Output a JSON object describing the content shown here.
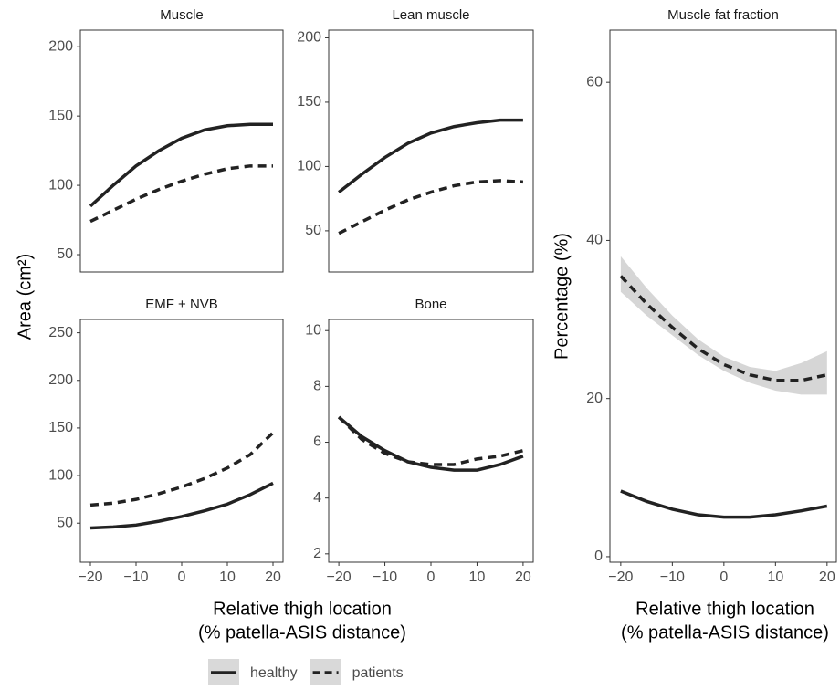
{
  "shared": {
    "ylabel": "Area (cm²)",
    "xlabel": [
      "Relative thigh location",
      "(% patella-ASIS distance)"
    ]
  },
  "chart_data": [
    {
      "type": "line",
      "title": "Muscle",
      "x": [
        -20,
        -15,
        -10,
        -5,
        0,
        5,
        10,
        15,
        20
      ],
      "xlim": [
        -22.2,
        22.2
      ],
      "ylim": [
        37.5,
        212
      ],
      "yticks": [
        50,
        100,
        150,
        200
      ],
      "series": [
        {
          "name": "healthy",
          "color": "#222222",
          "dash": false,
          "values": [
            85,
            100,
            114,
            125,
            134,
            140,
            143,
            144,
            144
          ]
        },
        {
          "name": "patients",
          "color": "#222222",
          "dash": true,
          "values": [
            74,
            82,
            90,
            97,
            103,
            108,
            112,
            114,
            114
          ]
        }
      ]
    },
    {
      "type": "line",
      "title": "Lean muscle",
      "x": [
        -20,
        -15,
        -10,
        -5,
        0,
        5,
        10,
        15,
        20
      ],
      "xlim": [
        -22.2,
        22.2
      ],
      "ylim": [
        18,
        206
      ],
      "yticks": [
        50,
        100,
        150,
        200
      ],
      "series": [
        {
          "name": "healthy",
          "color": "#222222",
          "dash": false,
          "values": [
            80,
            94,
            107,
            118,
            126,
            131,
            134,
            136,
            136
          ]
        },
        {
          "name": "patients",
          "color": "#222222",
          "dash": true,
          "values": [
            48,
            57,
            66,
            74,
            80,
            85,
            88,
            89,
            88
          ]
        }
      ]
    },
    {
      "type": "line",
      "title": "EMF + NVB",
      "x": [
        -20,
        -15,
        -10,
        -5,
        0,
        5,
        10,
        15,
        20
      ],
      "xlim": [
        -22.2,
        22.2
      ],
      "ylim": [
        9,
        264
      ],
      "yticks": [
        50,
        100,
        150,
        200,
        250
      ],
      "xticks": [
        {
          "value": -20,
          "label": "−20"
        },
        {
          "value": -10,
          "label": "−10"
        },
        0,
        10,
        20
      ],
      "series": [
        {
          "name": "healthy",
          "color": "#222222",
          "dash": false,
          "values": [
            45,
            46,
            48,
            52,
            57,
            63,
            70,
            80,
            92
          ]
        },
        {
          "name": "patients",
          "color": "#222222",
          "dash": true,
          "values": [
            69,
            71,
            75,
            81,
            88,
            97,
            108,
            122,
            145
          ]
        }
      ]
    },
    {
      "type": "line",
      "title": "Bone",
      "x": [
        -20,
        -15,
        -10,
        -5,
        0,
        5,
        10,
        15,
        20
      ],
      "xlim": [
        -22.2,
        22.2
      ],
      "ylim": [
        1.7,
        10.4
      ],
      "yticks": [
        2,
        4,
        6,
        8,
        10
      ],
      "xticks": [
        {
          "value": -20,
          "label": "−20"
        },
        {
          "value": -10,
          "label": "−10"
        },
        0,
        10,
        20
      ],
      "series": [
        {
          "name": "healthy",
          "color": "#222222",
          "dash": false,
          "values": [
            6.9,
            6.2,
            5.7,
            5.3,
            5.1,
            5.0,
            5.0,
            5.2,
            5.5
          ]
        },
        {
          "name": "patients",
          "color": "#222222",
          "dash": true,
          "values": [
            6.9,
            6.1,
            5.6,
            5.3,
            5.2,
            5.2,
            5.4,
            5.5,
            5.7
          ]
        }
      ]
    },
    {
      "type": "line",
      "title": "Muscle fat fraction",
      "ylabel": "Percentage (%)",
      "xlabel": [
        "Relative thigh location",
        "(% patella-ASIS distance)"
      ],
      "x": [
        -20,
        -15,
        -10,
        -5,
        0,
        5,
        10,
        15,
        20
      ],
      "xlim": [
        -22.1,
        21.8
      ],
      "ylim": [
        -0.7,
        66.6
      ],
      "yticks": [
        0,
        20,
        40,
        60
      ],
      "xticks": [
        {
          "value": -20,
          "label": "−20"
        },
        {
          "value": -10,
          "label": "−10"
        },
        0,
        10,
        20
      ],
      "series": [
        {
          "name": "healthy",
          "color": "#222222",
          "dash": false,
          "values": [
            8.3,
            7.0,
            6.0,
            5.3,
            5.0,
            5.0,
            5.3,
            5.8,
            6.4
          ]
        },
        {
          "name": "patients",
          "color": "#222222",
          "dash": true,
          "values": [
            35.5,
            32,
            29,
            26.3,
            24.3,
            23,
            22.3,
            22.3,
            23
          ],
          "ci_low": [
            33.5,
            30.5,
            28,
            25.5,
            23.5,
            22,
            21,
            20.5,
            20.5
          ],
          "ci_high": [
            38,
            34,
            30.5,
            27.5,
            25.3,
            24,
            23.5,
            24.5,
            26
          ]
        }
      ]
    }
  ]
}
